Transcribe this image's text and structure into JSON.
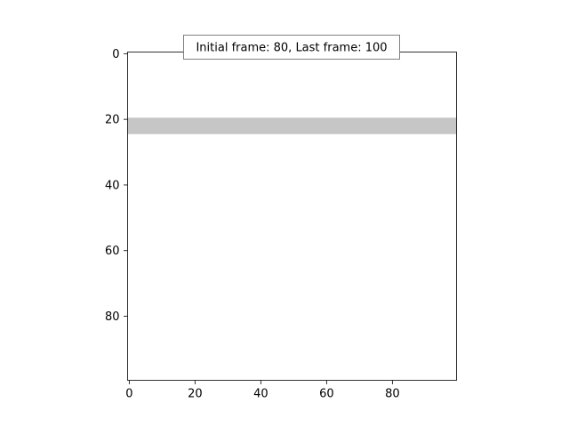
{
  "chart_data": {
    "type": "heatmap",
    "title": "",
    "xlabel": "",
    "ylabel": "",
    "xlim": [
      -0.5,
      99.5
    ],
    "ylim": [
      99.5,
      -0.5
    ],
    "y_inverted": true,
    "grid": false,
    "xticks": [
      0,
      20,
      40,
      60,
      80
    ],
    "yticks": [
      0,
      20,
      40,
      60,
      80
    ],
    "image": {
      "rows": 100,
      "cols": 100,
      "background_color": "#ffffff",
      "band": {
        "row_start": 20,
        "row_end": 24,
        "col_start": 0,
        "col_end": 99,
        "color": "#c6c6c6"
      }
    },
    "annotation": "Initial frame: 80, Last frame: 100"
  }
}
